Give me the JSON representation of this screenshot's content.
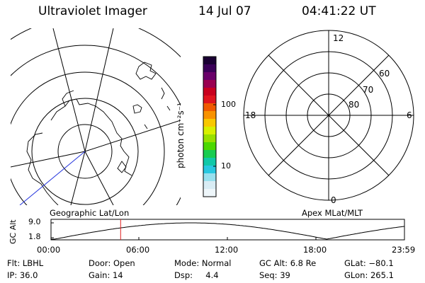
{
  "header": {
    "instrument": "Ultraviolet Imager",
    "date": "14 Jul 07",
    "time": "04:41:22 UT"
  },
  "colorbar": {
    "unit_label": "photon cm⁻²s⁻¹",
    "ticks": [
      "100",
      "10"
    ],
    "colors": [
      "#1a0033",
      "#3a0058",
      "#6a006a",
      "#9a0050",
      "#c8001e",
      "#e0141e",
      "#f05a00",
      "#f89200",
      "#f8c800",
      "#d8f000",
      "#98e000",
      "#4cd800",
      "#18cc50",
      "#10c8a8",
      "#28c8e0",
      "#98e0ee",
      "#d8ecf4",
      "#eef6fa"
    ]
  },
  "left_panel": {
    "label": "Geographic Lat/Lon"
  },
  "right_panel": {
    "label": "Apex MLat/MLT",
    "mlt_labels": [
      "12",
      "18",
      "6",
      "0"
    ],
    "lat_labels": [
      "60",
      "70",
      "80"
    ]
  },
  "altitude_plot": {
    "ylabel": "GC Alt",
    "yticks": [
      "9.0",
      "1.8"
    ],
    "xticks": [
      "00:00",
      "06:00",
      "12:00",
      "18:00",
      "23:59"
    ],
    "current_time_fraction": 0.197,
    "marker_color": "#e02020"
  },
  "footer": {
    "row1": {
      "filter": "Flt: LBHL",
      "door": "Door: Open",
      "mode": "Mode: Normal",
      "gcalt": "GC Alt: 6.8 Re",
      "glat": "GLat: −80.1"
    },
    "row2": {
      "ip": "IP: 36.0",
      "gain": "Gain: 14",
      "dsp": "Dsp:     4.4",
      "seq": "Seq: 39",
      "glon": "GLon: 265.1"
    }
  }
}
